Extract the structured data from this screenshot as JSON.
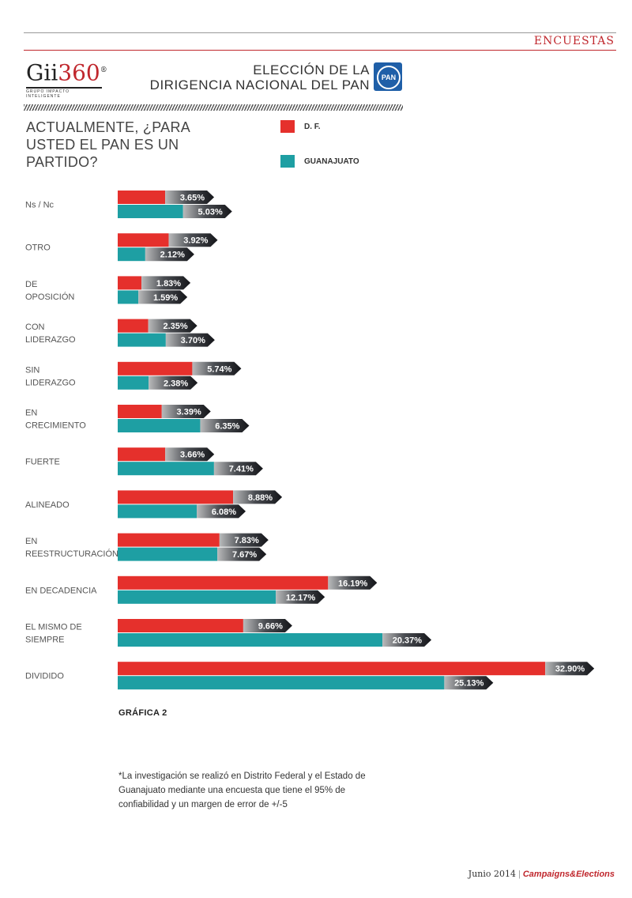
{
  "header": {
    "section": "ENCUESTAS",
    "logo_main": "Gii",
    "logo_num": "360",
    "logo_mark": "®",
    "logo_sub": "GRUPO IMPACTO INTELIGENTE",
    "title_line1": "ELECCIÓN DE LA",
    "title_line2": "DIRIGENCIA NACIONAL DEL PAN",
    "pan_badge": "PAN"
  },
  "colors": {
    "df": "#e5302c",
    "gto": "#1e9fa3",
    "label_dark": "#15161a",
    "accent": "#c0272d"
  },
  "footnote": "*La investigación se realizó en Distrito Federal y el Estado de Guanajuato mediante una encuesta que tiene el 95% de confiabilidad y un margen de error de +/-5",
  "footer": {
    "date": "Junio 2014",
    "magazine": "Campaigns&Elections"
  },
  "chart_data": {
    "type": "bar",
    "orientation": "horizontal",
    "title": "ACTUALMENTE, ¿PARA USTED EL PAN ES UN PARTIDO?",
    "caption": "GRÁFICA 2",
    "legend_position": "top-right",
    "categories": [
      [
        "Ns / Nc"
      ],
      [
        "OTRO"
      ],
      [
        "DE",
        "OPOSICIÓN"
      ],
      [
        "CON",
        "LIDERAZGO"
      ],
      [
        "SIN",
        "LIDERAZGO"
      ],
      [
        "EN",
        "CRECIMIENTO"
      ],
      [
        "FUERTE"
      ],
      [
        "ALINEADO"
      ],
      [
        "EN",
        "REESTRUCTURACIÓN"
      ],
      [
        "EN DECADENCIA"
      ],
      [
        "EL MISMO DE",
        "SIEMPRE"
      ],
      [
        "DIVIDIDO"
      ]
    ],
    "series": [
      {
        "name": "D. F.",
        "color": "#e5302c",
        "values": [
          3.65,
          3.92,
          1.83,
          2.35,
          5.74,
          3.39,
          3.66,
          8.88,
          7.83,
          16.19,
          9.66,
          32.9
        ],
        "labels": [
          "3.65%",
          "3.92%",
          "1.83%",
          "2.35%",
          "5.74%",
          "3.39%",
          "3.66%",
          "8.88%",
          "7.83%",
          "16.19%",
          "9.66%",
          "32.90%"
        ]
      },
      {
        "name": "GUANAJUATO",
        "color": "#1e9fa3",
        "values": [
          5.03,
          2.12,
          1.59,
          3.7,
          2.38,
          6.35,
          7.41,
          6.08,
          7.67,
          12.17,
          20.37,
          25.13
        ],
        "labels": [
          "5.03%",
          "2.12%",
          "1.59%",
          "3.70%",
          "2.38%",
          "6.35%",
          "7.41%",
          "6.08%",
          "7.67%",
          "12.17%",
          "20.37%",
          "25.13%"
        ]
      }
    ]
  }
}
